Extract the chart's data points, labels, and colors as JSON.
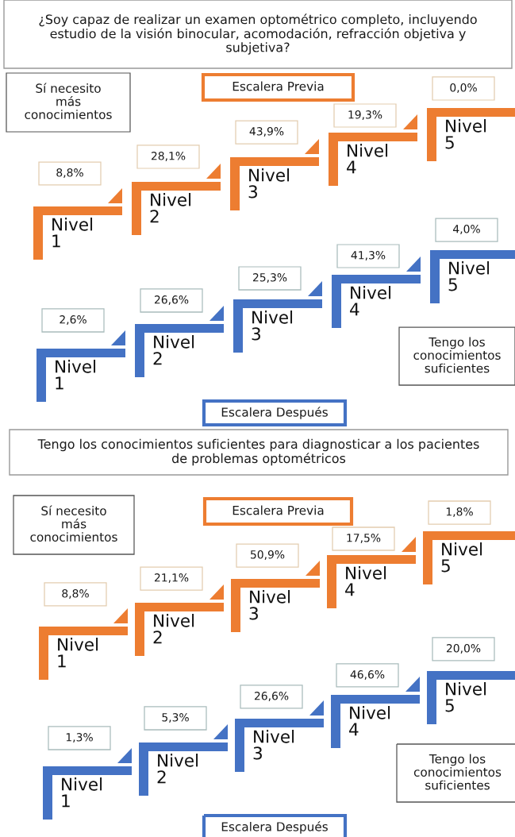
{
  "chart_data": [
    {
      "type": "other",
      "title": "¿Soy capaz de realizar un examen optométrico completo, incluyendo\nestudio de la visión binocular, acomodación, refracción objetiva y\nsubjetiva?",
      "subtitle": "Escalera Previa",
      "annotations": [
        "Sí necesito\nmás\nconocimientos"
      ],
      "categories": [
        "Nivel 1",
        "Nivel 2",
        "Nivel 3",
        "Nivel 4",
        "Nivel 5"
      ],
      "values": [
        8.8,
        28.1,
        43.9,
        19.3,
        0.0
      ],
      "value_labels": [
        "8,8%",
        "28,1%",
        "43,9%",
        "19,3%",
        "0,0%"
      ],
      "color": "#ed7d31"
    },
    {
      "type": "other",
      "title": "Escalera Después",
      "annotations": [
        "Tengo los\nconocimientos\nsuficientes"
      ],
      "categories": [
        "Nivel 1",
        "Nivel 2",
        "Nivel 3",
        "Nivel 4",
        "Nivel 5"
      ],
      "values": [
        2.6,
        26.6,
        25.3,
        41.3,
        4.0
      ],
      "value_labels": [
        "2,6%",
        "26,6%",
        "25,3%",
        "41,3%",
        "4,0%"
      ],
      "color": "#4472c4"
    },
    {
      "type": "other",
      "title": "Tengo los conocimientos suficientes para diagnosticar a los pacientes\nde problemas optométricos",
      "subtitle": "Escalera Previa",
      "annotations": [
        "Sí necesito\nmás\nconocimientos"
      ],
      "categories": [
        "Nivel 1",
        "Nivel 2",
        "Nivel 3",
        "Nivel 4",
        "Nivel 5"
      ],
      "values": [
        8.8,
        21.1,
        50.9,
        17.5,
        1.8
      ],
      "value_labels": [
        "8,8%",
        "21,1%",
        "50,9%",
        "17,5%",
        "1,8%"
      ],
      "color": "#ed7d31"
    },
    {
      "type": "other",
      "title": "Escalera Después",
      "annotations": [
        "Tengo los\nconocimientos\nsuficientes"
      ],
      "categories": [
        "Nivel 1",
        "Nivel 2",
        "Nivel 3",
        "Nivel 4",
        "Nivel 5"
      ],
      "values": [
        1.3,
        5.3,
        26.6,
        46.6,
        20.0
      ],
      "value_labels": [
        "1,3%",
        "5,3%",
        "26,6%",
        "46,6%",
        "20,0%"
      ],
      "color": "#4472c4"
    }
  ]
}
